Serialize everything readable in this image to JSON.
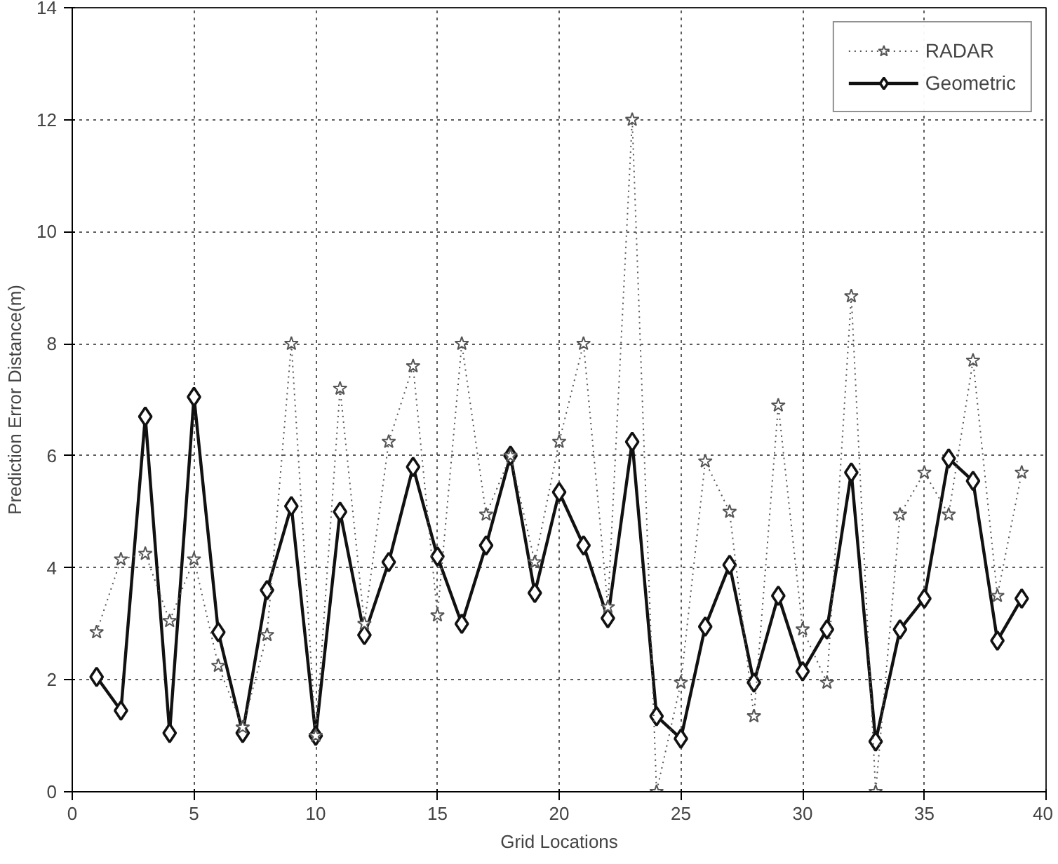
{
  "chart_data": {
    "type": "line",
    "xlabel": "Grid Locations",
    "ylabel": "Prediction Error Distance(m)",
    "x": [
      1,
      2,
      3,
      4,
      5,
      6,
      7,
      8,
      9,
      10,
      11,
      12,
      13,
      14,
      15,
      16,
      17,
      18,
      19,
      20,
      21,
      22,
      23,
      24,
      25,
      26,
      27,
      28,
      29,
      30,
      31,
      32,
      33,
      34,
      35,
      36,
      37,
      38,
      39
    ],
    "xlim": [
      0,
      40
    ],
    "xticks": [
      0,
      5,
      10,
      15,
      20,
      25,
      30,
      35,
      40
    ],
    "ylim": [
      0,
      14
    ],
    "yticks": [
      0,
      2,
      4,
      6,
      8,
      10,
      12,
      14
    ],
    "grid": true,
    "legend": "top right",
    "series": [
      {
        "name": "RADAR",
        "color": "#555555",
        "marker": "star",
        "line_style": "dotted",
        "values": [
          2.85,
          4.15,
          4.25,
          3.05,
          4.15,
          2.25,
          1.15,
          2.8,
          8.0,
          1.0,
          7.2,
          3.0,
          6.25,
          7.6,
          3.15,
          8.0,
          4.95,
          6.0,
          4.1,
          6.25,
          8.0,
          3.3,
          12.0,
          0.0,
          1.95,
          5.9,
          5.0,
          1.35,
          6.9,
          2.9,
          1.95,
          8.85,
          0.0,
          4.95,
          5.7,
          4.95,
          7.7,
          3.5,
          5.7
        ]
      },
      {
        "name": "Geometric",
        "color": "#111111",
        "marker": "diamond",
        "line_style": "solid",
        "values": [
          2.05,
          1.45,
          6.7,
          1.05,
          7.05,
          2.85,
          1.05,
          3.6,
          5.1,
          1.0,
          5.0,
          2.8,
          4.1,
          5.8,
          4.2,
          3.0,
          4.4,
          6.0,
          3.55,
          5.35,
          4.4,
          3.1,
          6.25,
          1.35,
          0.95,
          2.95,
          4.05,
          1.95,
          3.5,
          2.15,
          2.9,
          5.7,
          0.9,
          2.9,
          3.45,
          5.95,
          5.55,
          2.7,
          3.45
        ]
      }
    ]
  }
}
